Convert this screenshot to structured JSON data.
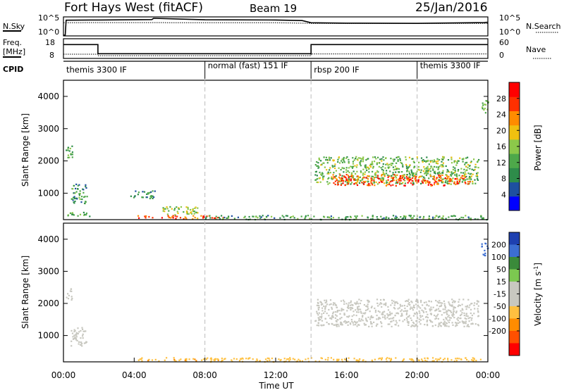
{
  "header": {
    "radar": "Fort Hays West (fitACF)",
    "beam": "Beam 19",
    "date": "25/Jan/2016"
  },
  "noise_panel": {
    "left_label": "N.Sky",
    "right_label": "N.Search",
    "left_ticks": [
      "10^5",
      "10^0"
    ],
    "right_ticks": [
      "10^5",
      "10^0"
    ]
  },
  "freq_panel": {
    "left_label_1": "Freq.",
    "left_label_2": "[MHz]",
    "left_ticks": [
      "18",
      "8"
    ],
    "right_label": "Nave",
    "right_ticks": [
      "60",
      "0"
    ]
  },
  "cpid_panel": {
    "label": "CPID",
    "segments": [
      {
        "text": "themis 3300 IF",
        "start_h": 0
      },
      {
        "text": "normal (fast) 151 IF",
        "start_h": 8
      },
      {
        "text": "rbsp 200 IF",
        "start_h": 14
      },
      {
        "text": "themis 3300 IF",
        "start_h": 20
      }
    ]
  },
  "time_axis": {
    "label": "Time UT",
    "ticks": [
      "00:00",
      "04:00",
      "08:00",
      "12:00",
      "16:00",
      "20:00",
      "00:00"
    ]
  },
  "colors": {
    "power": [
      "#0000ff",
      "#1e50a0",
      "#2e8c4a",
      "#4ea84a",
      "#8cc84a",
      "#f0c010",
      "#ff8c00",
      "#ff3000",
      "#ff0000"
    ],
    "velocity": [
      "#1e40b0",
      "#3c6ed2",
      "#3a8a3a",
      "#7cc850",
      "#c8c8c0",
      "#c8c8c0",
      "#ffc040",
      "#ff8c00",
      "#ff5000",
      "#ff0000"
    ]
  },
  "chart_data": [
    {
      "type": "line",
      "title": "N.Sky / N.Search",
      "x_unit": "hours UT",
      "xlim": [
        0,
        24
      ],
      "series": [
        {
          "name": "N.Sky",
          "x": [
            0,
            0.1,
            0.15,
            2,
            5,
            5.1,
            8,
            12,
            13.5,
            14,
            16,
            20,
            23.8,
            24
          ],
          "values": [
            1,
            1,
            50000,
            60000,
            80000,
            200000,
            70000,
            60000,
            40000,
            8000,
            6000,
            5000,
            9000,
            12000
          ]
        },
        {
          "name": "N.Search",
          "x": [
            0,
            2,
            4,
            8,
            12,
            14,
            16,
            20,
            24
          ],
          "values": [
            8000,
            9000,
            9000,
            8000,
            8000,
            5000,
            5000,
            5000,
            5000
          ]
        }
      ]
    },
    {
      "type": "line",
      "title": "Freq. / Nave",
      "xlim": [
        0,
        24
      ],
      "series": [
        {
          "name": "Freq.",
          "unit": "MHz",
          "ylim": [
            8,
            18
          ],
          "x": [
            0,
            1.95,
            1.95,
            14,
            14,
            24
          ],
          "values": [
            15.5,
            15.5,
            10.3,
            10.3,
            15.5,
            15.5
          ]
        },
        {
          "name": "Nave",
          "ylim": [
            0,
            60
          ],
          "x": [
            0,
            1.95,
            1.95,
            14,
            14,
            24
          ],
          "values": [
            12,
            12,
            7,
            7,
            13,
            13
          ]
        }
      ]
    },
    {
      "type": "heatmap",
      "title": "Power",
      "xlabel": "Time UT",
      "ylabel": "Slant Range [km]",
      "colorbar_label": "Power [dB]",
      "xlim": [
        0,
        24
      ],
      "ylim": [
        180,
        4500
      ],
      "yticks": [
        1000,
        2000,
        3000,
        4000
      ],
      "colorbar_ticks": [
        4,
        8,
        12,
        16,
        20,
        24,
        28
      ],
      "colorbar_range": [
        0,
        32
      ],
      "regions": [
        {
          "t": [
            0.1,
            0.5
          ],
          "r": [
            2100,
            2500
          ],
          "v": 12
        },
        {
          "t": [
            0.4,
            1.3
          ],
          "r": [
            700,
            1300
          ],
          "v": 10
        },
        {
          "t": [
            0.2,
            1.5
          ],
          "r": [
            300,
            450
          ],
          "v": 12
        },
        {
          "t": [
            3.7,
            5.2
          ],
          "r": [
            850,
            1100
          ],
          "v": 10
        },
        {
          "t": [
            4.0,
            9.0
          ],
          "r": [
            220,
            330
          ],
          "v": 26
        },
        {
          "t": [
            5.6,
            7.6
          ],
          "r": [
            350,
            600
          ],
          "v": 16
        },
        {
          "t": [
            8.0,
            23.9
          ],
          "r": [
            200,
            330
          ],
          "v": 11
        },
        {
          "t": [
            14.2,
            23.5
          ],
          "r": [
            1300,
            2150
          ],
          "v": 14
        },
        {
          "t": [
            15.2,
            23.0
          ],
          "r": [
            1250,
            1600
          ],
          "v": 26
        },
        {
          "t": [
            23.6,
            24.0
          ],
          "r": [
            3500,
            3900
          ],
          "v": 12
        }
      ]
    },
    {
      "type": "heatmap",
      "title": "Velocity",
      "xlabel": "Time UT",
      "ylabel": "Slant Range [km]",
      "colorbar_label": "Velocity [m s-1]",
      "xlim": [
        0,
        24
      ],
      "ylim": [
        180,
        4500
      ],
      "yticks": [
        1000,
        2000,
        3000,
        4000
      ],
      "colorbar_ticks": [
        "200",
        "100",
        "50",
        "15",
        "-15",
        "-50",
        "-100",
        "-200"
      ],
      "regions": [
        {
          "t": [
            0.1,
            0.5
          ],
          "r": [
            2100,
            2500
          ],
          "v": 0
        },
        {
          "t": [
            0.4,
            1.3
          ],
          "r": [
            700,
            1300
          ],
          "v": 0
        },
        {
          "t": [
            4.0,
            9.0
          ],
          "r": [
            220,
            330
          ],
          "v": -40
        },
        {
          "t": [
            8.0,
            23.9
          ],
          "r": [
            200,
            330
          ],
          "v": -30
        },
        {
          "t": [
            14.2,
            23.5
          ],
          "r": [
            1300,
            2150
          ],
          "v": 0
        },
        {
          "t": [
            23.6,
            24.0
          ],
          "r": [
            3500,
            3900
          ],
          "v": 150
        }
      ]
    }
  ]
}
